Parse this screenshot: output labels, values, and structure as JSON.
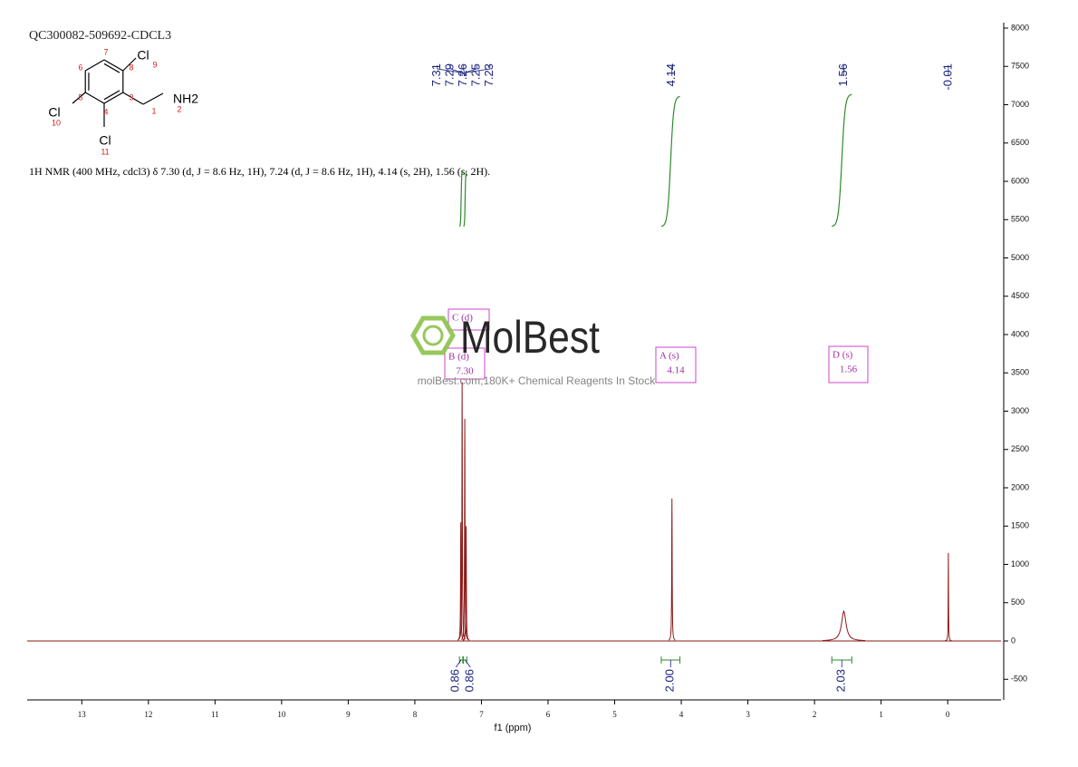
{
  "chart_data": {
    "type": "nmr",
    "title": "QC300082-509692-CDCL3",
    "description": "1H NMR (400 MHz, cdcl3) δ 7.30 (d, J = 8.6 Hz, 1H), 7.24 (d, J = 8.6 Hz, 1H), 4.14 (s, 2H), 1.56 (s, 2H).",
    "structure": {
      "atoms": [
        "Cl",
        "Cl",
        "Cl",
        "NH2"
      ],
      "numbers": [
        "1",
        "2",
        "3",
        "4",
        "5",
        "6",
        "7",
        "8",
        "9",
        "10",
        "11"
      ]
    },
    "x_label": "f1 (ppm)",
    "xlim": [
      13.82,
      -0.8
    ],
    "xticks": [
      13,
      12,
      11,
      10,
      9,
      8,
      7,
      6,
      5,
      4,
      3,
      2,
      1,
      0
    ],
    "ylim": [
      -769,
      8071
    ],
    "yticks": [
      -500,
      0,
      500,
      1000,
      1500,
      2000,
      2500,
      3000,
      3500,
      4000,
      4500,
      5000,
      5500,
      6000,
      6500,
      7000,
      7500,
      8000
    ],
    "color": "#8b1a1a",
    "peaks": {
      "x": [
        7.31,
        7.29,
        7.25,
        7.23,
        4.14,
        1.56,
        -0.01
      ],
      "values": [
        1550,
        3380,
        2900,
        1500,
        1860,
        390,
        1150
      ],
      "widths": [
        0.004,
        0.004,
        0.004,
        0.004,
        0.004,
        0.04,
        0.003
      ]
    },
    "peak_labels": [
      7.31,
      7.29,
      7.26,
      7.25,
      7.23,
      4.14,
      1.56,
      -0.01
    ],
    "integrals": [
      {
        "range": [
          7.33,
          7.28
        ],
        "value": 0.86,
        "label": "0.86"
      },
      {
        "range": [
          7.27,
          7.22
        ],
        "value": 0.86,
        "label": "0.86"
      },
      {
        "range": [
          4.3,
          4.02
        ],
        "value": 2.0,
        "label": "2.00"
      },
      {
        "range": [
          1.74,
          1.44
        ],
        "value": 2.03,
        "label": "2.03"
      }
    ],
    "integral_color": "#2e8b2e",
    "multiplets": [
      {
        "name": "C (d)"
      },
      {
        "name": "B (d)",
        "shift": {
          "value": 7.3,
          "label": "7.30"
        }
      },
      {
        "name": "A (s)",
        "shift": {
          "value": 4.14,
          "label": "4.14"
        }
      },
      {
        "name": "D (s)",
        "shift": {
          "value": 1.56,
          "label": "1.56"
        }
      }
    ],
    "watermark": {
      "brand": "MolBest",
      "tagline": "molBest.com,180K+ Chemical Reagents In Stock"
    }
  }
}
